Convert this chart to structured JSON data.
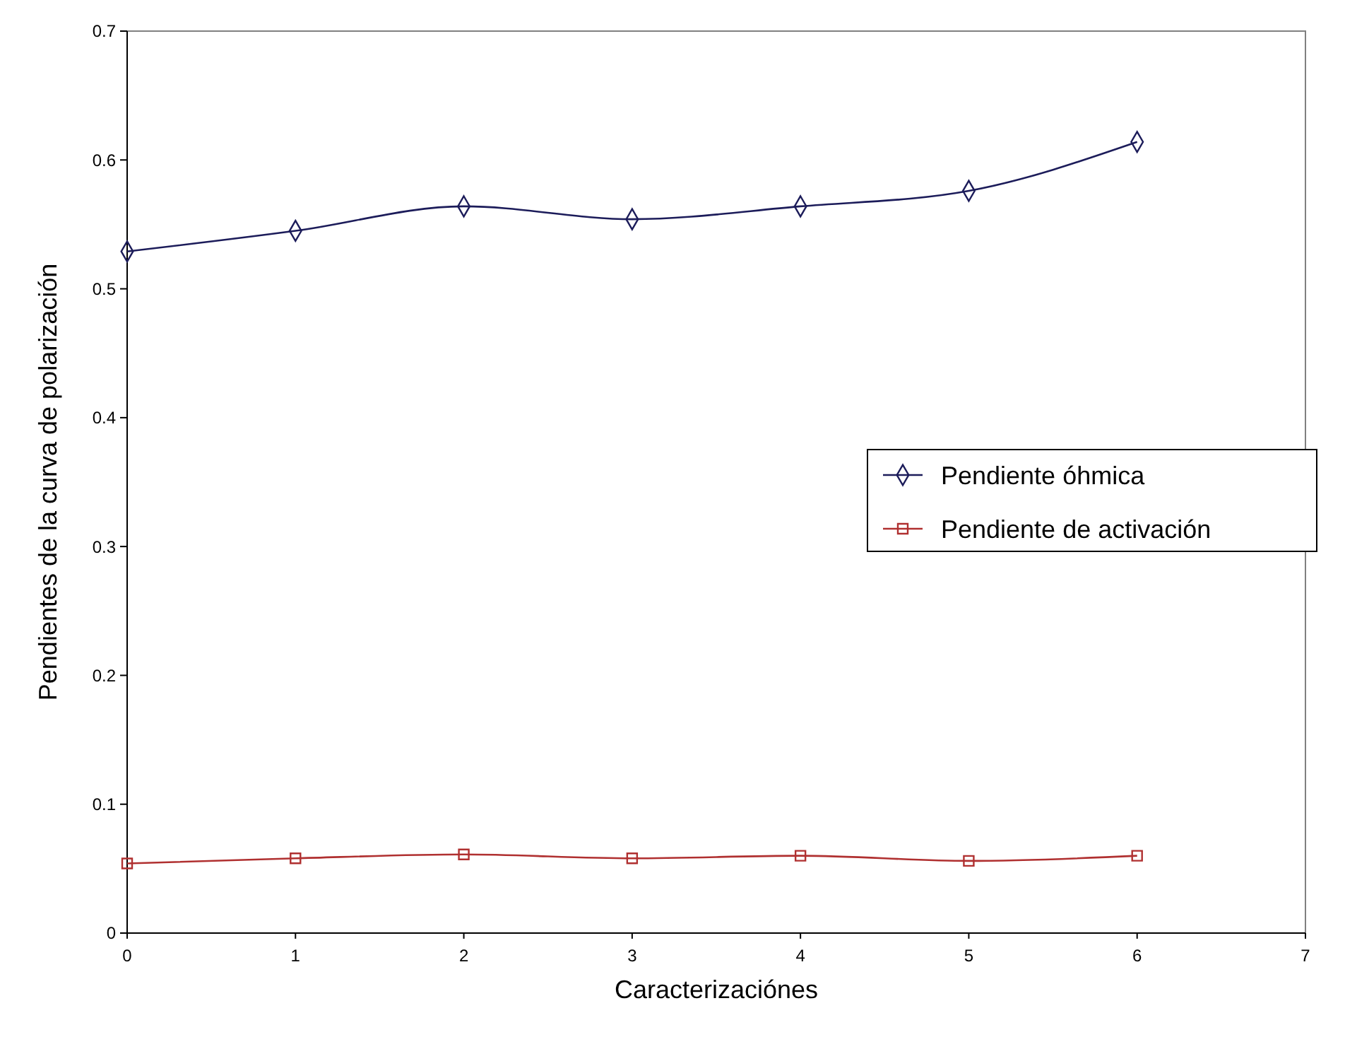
{
  "chart_data": {
    "type": "line",
    "xlabel": "Caracterizaciónes",
    "ylabel": "Pendientes de la curva de polarización",
    "x": [
      0,
      1,
      2,
      3,
      4,
      5,
      6
    ],
    "xlim": [
      0,
      7
    ],
    "xticks": [
      0,
      1,
      2,
      3,
      4,
      5,
      6,
      7
    ],
    "ylim": [
      0,
      0.7
    ],
    "yticks": [
      0,
      0.1,
      0.2,
      0.3,
      0.4,
      0.5,
      0.6,
      0.7
    ],
    "grid": false,
    "legend": "right",
    "line_style": "solid",
    "series": [
      {
        "name": "Pendiente óhmica",
        "color": "#1c1c5a",
        "marker": "diamond",
        "values": [
          0.529,
          0.545,
          0.564,
          0.554,
          0.564,
          0.576,
          0.614
        ]
      },
      {
        "name": "Pendiente de activación",
        "color": "#b03030",
        "marker": "square",
        "values": [
          0.054,
          0.058,
          0.061,
          0.058,
          0.06,
          0.056,
          0.06
        ]
      }
    ]
  }
}
